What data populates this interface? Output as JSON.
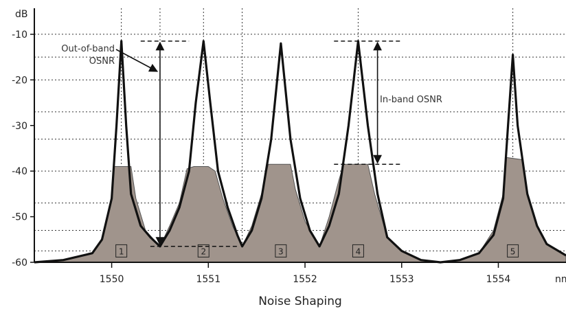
{
  "chart_data": {
    "type": "line",
    "title": "",
    "xlabel": "Noise Shaping",
    "ylabel": "dB",
    "x_unit": "nm",
    "xlim": [
      1549.2,
      1554.7
    ],
    "ylim": [
      -60,
      -7
    ],
    "grid": true,
    "x_ticks": [
      "1550",
      "1551",
      "1552",
      "1553",
      "1554"
    ],
    "y_ticks": [
      "-10",
      "-20",
      "-30",
      "-40",
      "-50",
      "-60"
    ],
    "channels": [
      {
        "label": "1",
        "center_nm": 1550.1,
        "peak_db": -11.5,
        "noise_floor_db": -39
      },
      {
        "label": "2",
        "center_nm": 1550.95,
        "peak_db": -11.5,
        "noise_floor_db": -39
      },
      {
        "label": "3",
        "center_nm": 1551.75,
        "peak_db": -12,
        "noise_floor_db": -38.5
      },
      {
        "label": "4",
        "center_nm": 1552.55,
        "peak_db": -11.5,
        "noise_floor_db": -38.5
      },
      {
        "label": "5",
        "center_nm": 1554.15,
        "peak_db": -14.5,
        "noise_floor_db": -37
      }
    ],
    "series": [
      {
        "name": "signal",
        "points": [
          [
            1549.2,
            -60
          ],
          [
            1549.5,
            -59.5
          ],
          [
            1549.8,
            -58
          ],
          [
            1549.9,
            -55
          ],
          [
            1550.0,
            -46
          ],
          [
            1550.05,
            -30
          ],
          [
            1550.1,
            -11.5
          ],
          [
            1550.15,
            -30
          ],
          [
            1550.2,
            -45
          ],
          [
            1550.3,
            -52
          ],
          [
            1550.4,
            -54.5
          ],
          [
            1550.5,
            -56.5
          ],
          [
            1550.6,
            -53
          ],
          [
            1550.7,
            -48
          ],
          [
            1550.8,
            -40
          ],
          [
            1550.87,
            -25
          ],
          [
            1550.95,
            -11.5
          ],
          [
            1551.02,
            -25
          ],
          [
            1551.1,
            -40
          ],
          [
            1551.2,
            -48
          ],
          [
            1551.3,
            -54
          ],
          [
            1551.35,
            -56.5
          ],
          [
            1551.45,
            -53
          ],
          [
            1551.55,
            -46
          ],
          [
            1551.65,
            -33
          ],
          [
            1551.75,
            -12
          ],
          [
            1551.85,
            -33
          ],
          [
            1551.95,
            -46
          ],
          [
            1552.05,
            -53
          ],
          [
            1552.15,
            -56.5
          ],
          [
            1552.25,
            -52
          ],
          [
            1552.35,
            -45
          ],
          [
            1552.45,
            -30
          ],
          [
            1552.55,
            -11.5
          ],
          [
            1552.65,
            -30
          ],
          [
            1552.75,
            -45
          ],
          [
            1552.85,
            -54.5
          ],
          [
            1553.0,
            -57.5
          ],
          [
            1553.2,
            -59.5
          ],
          [
            1553.4,
            -60
          ],
          [
            1553.6,
            -59.5
          ],
          [
            1553.8,
            -58
          ],
          [
            1553.95,
            -54
          ],
          [
            1554.05,
            -46
          ],
          [
            1554.1,
            -30
          ],
          [
            1554.15,
            -14.5
          ],
          [
            1554.2,
            -30
          ],
          [
            1554.3,
            -45
          ],
          [
            1554.4,
            -52
          ],
          [
            1554.5,
            -56
          ],
          [
            1554.7,
            -58.5
          ]
        ]
      },
      {
        "name": "noise",
        "points": [
          [
            1549.2,
            -60
          ],
          [
            1549.5,
            -59.5
          ],
          [
            1549.8,
            -58
          ],
          [
            1549.9,
            -55
          ],
          [
            1550.0,
            -46
          ],
          [
            1550.02,
            -39
          ],
          [
            1550.2,
            -39
          ],
          [
            1550.25,
            -46
          ],
          [
            1550.35,
            -53
          ],
          [
            1550.5,
            -56.5
          ],
          [
            1550.6,
            -52
          ],
          [
            1550.7,
            -47
          ],
          [
            1550.78,
            -39.5
          ],
          [
            1550.85,
            -39
          ],
          [
            1551.0,
            -39
          ],
          [
            1551.07,
            -40
          ],
          [
            1551.15,
            -46
          ],
          [
            1551.25,
            -52
          ],
          [
            1551.35,
            -56.5
          ],
          [
            1551.45,
            -52
          ],
          [
            1551.55,
            -45
          ],
          [
            1551.62,
            -38.5
          ],
          [
            1551.7,
            -38.5
          ],
          [
            1551.85,
            -38.5
          ],
          [
            1551.9,
            -44
          ],
          [
            1552.0,
            -51
          ],
          [
            1552.15,
            -56.5
          ],
          [
            1552.25,
            -50
          ],
          [
            1552.35,
            -42
          ],
          [
            1552.4,
            -38.5
          ],
          [
            1552.55,
            -38.5
          ],
          [
            1552.65,
            -38.5
          ],
          [
            1552.72,
            -45
          ],
          [
            1552.85,
            -54.5
          ],
          [
            1553.0,
            -57.5
          ],
          [
            1553.2,
            -59.5
          ],
          [
            1553.4,
            -60
          ],
          [
            1553.6,
            -59.5
          ],
          [
            1553.8,
            -58
          ],
          [
            1553.95,
            -53
          ],
          [
            1554.05,
            -45
          ],
          [
            1554.08,
            -37
          ],
          [
            1554.25,
            -37.5
          ],
          [
            1554.3,
            -45
          ],
          [
            1554.4,
            -52
          ],
          [
            1554.5,
            -56
          ],
          [
            1554.7,
            -58.5
          ]
        ]
      }
    ],
    "annotations": {
      "out_of_band": "Out-of-band\nOSNR",
      "in_band": "In-band OSNR"
    }
  }
}
